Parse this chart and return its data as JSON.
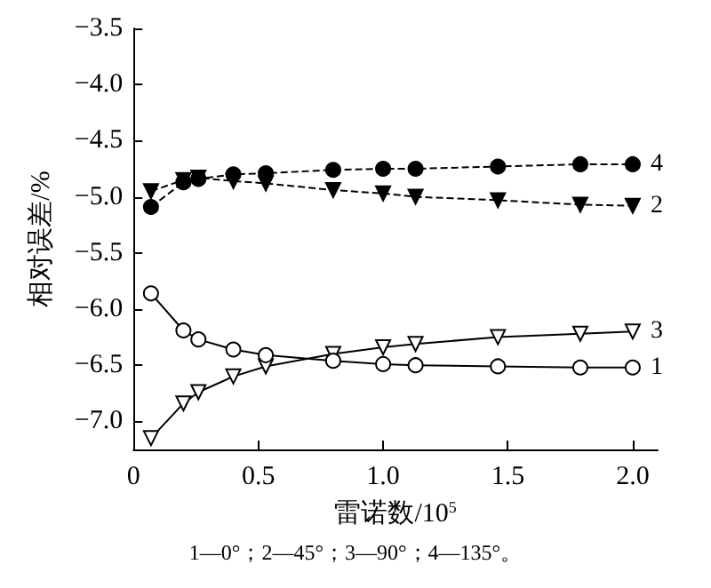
{
  "chart_data": {
    "type": "line",
    "xlabel": "雷诺数/10$^{5}$",
    "ylabel": "相对误差/%",
    "annotations": [
      "1—0°；2—45°；3—90°；4—135°。"
    ],
    "xlim": [
      0,
      2.1
    ],
    "xticks": [
      0,
      0.5,
      {
        "value": 1,
        "label": "1.0"
      },
      1.5,
      {
        "value": 2,
        "label": "2.0"
      }
    ],
    "ylim": [
      -7.25,
      -3.5
    ],
    "yticks": [
      {
        "value": -3.5,
        "label": "−3.5"
      },
      {
        "value": -4,
        "label": "−4.0"
      },
      {
        "value": -4.5,
        "label": "−4.5"
      },
      {
        "value": -5,
        "label": "−5.0"
      },
      {
        "value": -5.5,
        "label": "−5.5"
      },
      {
        "value": -6,
        "label": "−6.0"
      },
      {
        "value": -6.5,
        "label": "−6.5"
      },
      {
        "value": -7,
        "label": "−7.0"
      }
    ],
    "x": [
      0.07,
      0.2,
      0.26,
      0.4,
      0.53,
      0.8,
      1.0,
      1.13,
      1.46,
      1.79,
      2.0
    ],
    "grid": false,
    "legend": false,
    "series": [
      {
        "name": "1",
        "color": "#000000",
        "marker": "circle",
        "line_style": "solid",
        "values": [
          -5.86,
          -6.19,
          -6.27,
          -6.36,
          -6.41,
          -6.46,
          -6.49,
          -6.5,
          -6.51,
          -6.52,
          -6.52
        ]
      },
      {
        "name": "2",
        "color": "#000000",
        "marker": "triangle",
        "line_style": "dashed",
        "values": [
          -4.95,
          -4.85,
          -4.83,
          -4.86,
          -4.88,
          -4.94,
          -4.97,
          -5.0,
          -5.03,
          -5.07,
          -5.08
        ]
      },
      {
        "name": "3",
        "color": "#000000",
        "marker": "triangle",
        "line_style": "solid",
        "values": [
          -7.15,
          -6.84,
          -6.74,
          -6.6,
          -6.51,
          -6.4,
          -6.34,
          -6.31,
          -6.25,
          -6.22,
          -6.2
        ]
      },
      {
        "name": "4",
        "color": "#000000",
        "marker": "circle",
        "line_style": "dashed",
        "values": [
          -5.09,
          -4.87,
          -4.84,
          -4.8,
          -4.79,
          -4.76,
          -4.75,
          -4.75,
          -4.73,
          -4.71,
          -4.71
        ]
      }
    ]
  }
}
